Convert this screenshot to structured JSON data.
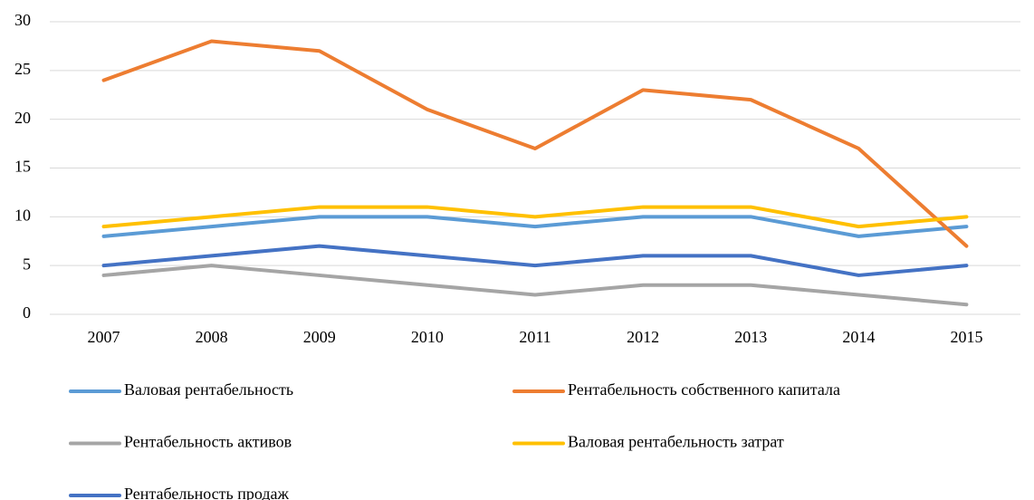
{
  "chart_data": {
    "type": "line",
    "categories": [
      "2007",
      "2008",
      "2009",
      "2010",
      "2011",
      "2012",
      "2013",
      "2014",
      "2015"
    ],
    "series": [
      {
        "name": "Валовая рентабельность",
        "color": "#5b9bd5",
        "values": [
          8,
          9,
          10,
          10,
          9,
          10,
          10,
          8,
          9
        ]
      },
      {
        "name": "Рентабельность собственного капитала",
        "color": "#ed7d31",
        "values": [
          24,
          28,
          27,
          21,
          17,
          23,
          22,
          17,
          7
        ]
      },
      {
        "name": "Рентабельность активов",
        "color": "#a5a5a5",
        "values": [
          4,
          5,
          4,
          3,
          2,
          3,
          3,
          2,
          1
        ]
      },
      {
        "name": "Валовая рентабельность затрат",
        "color": "#ffc000",
        "values": [
          9,
          10,
          11,
          11,
          10,
          11,
          11,
          9,
          10
        ]
      },
      {
        "name": "Рентабельность продаж",
        "color": "#4472c4",
        "values": [
          5,
          6,
          7,
          6,
          5,
          6,
          6,
          4,
          5
        ]
      }
    ],
    "ylim": [
      0,
      30
    ],
    "yticks": [
      0,
      5,
      10,
      15,
      20,
      25,
      30
    ],
    "grid": true,
    "legend": "bottom"
  }
}
